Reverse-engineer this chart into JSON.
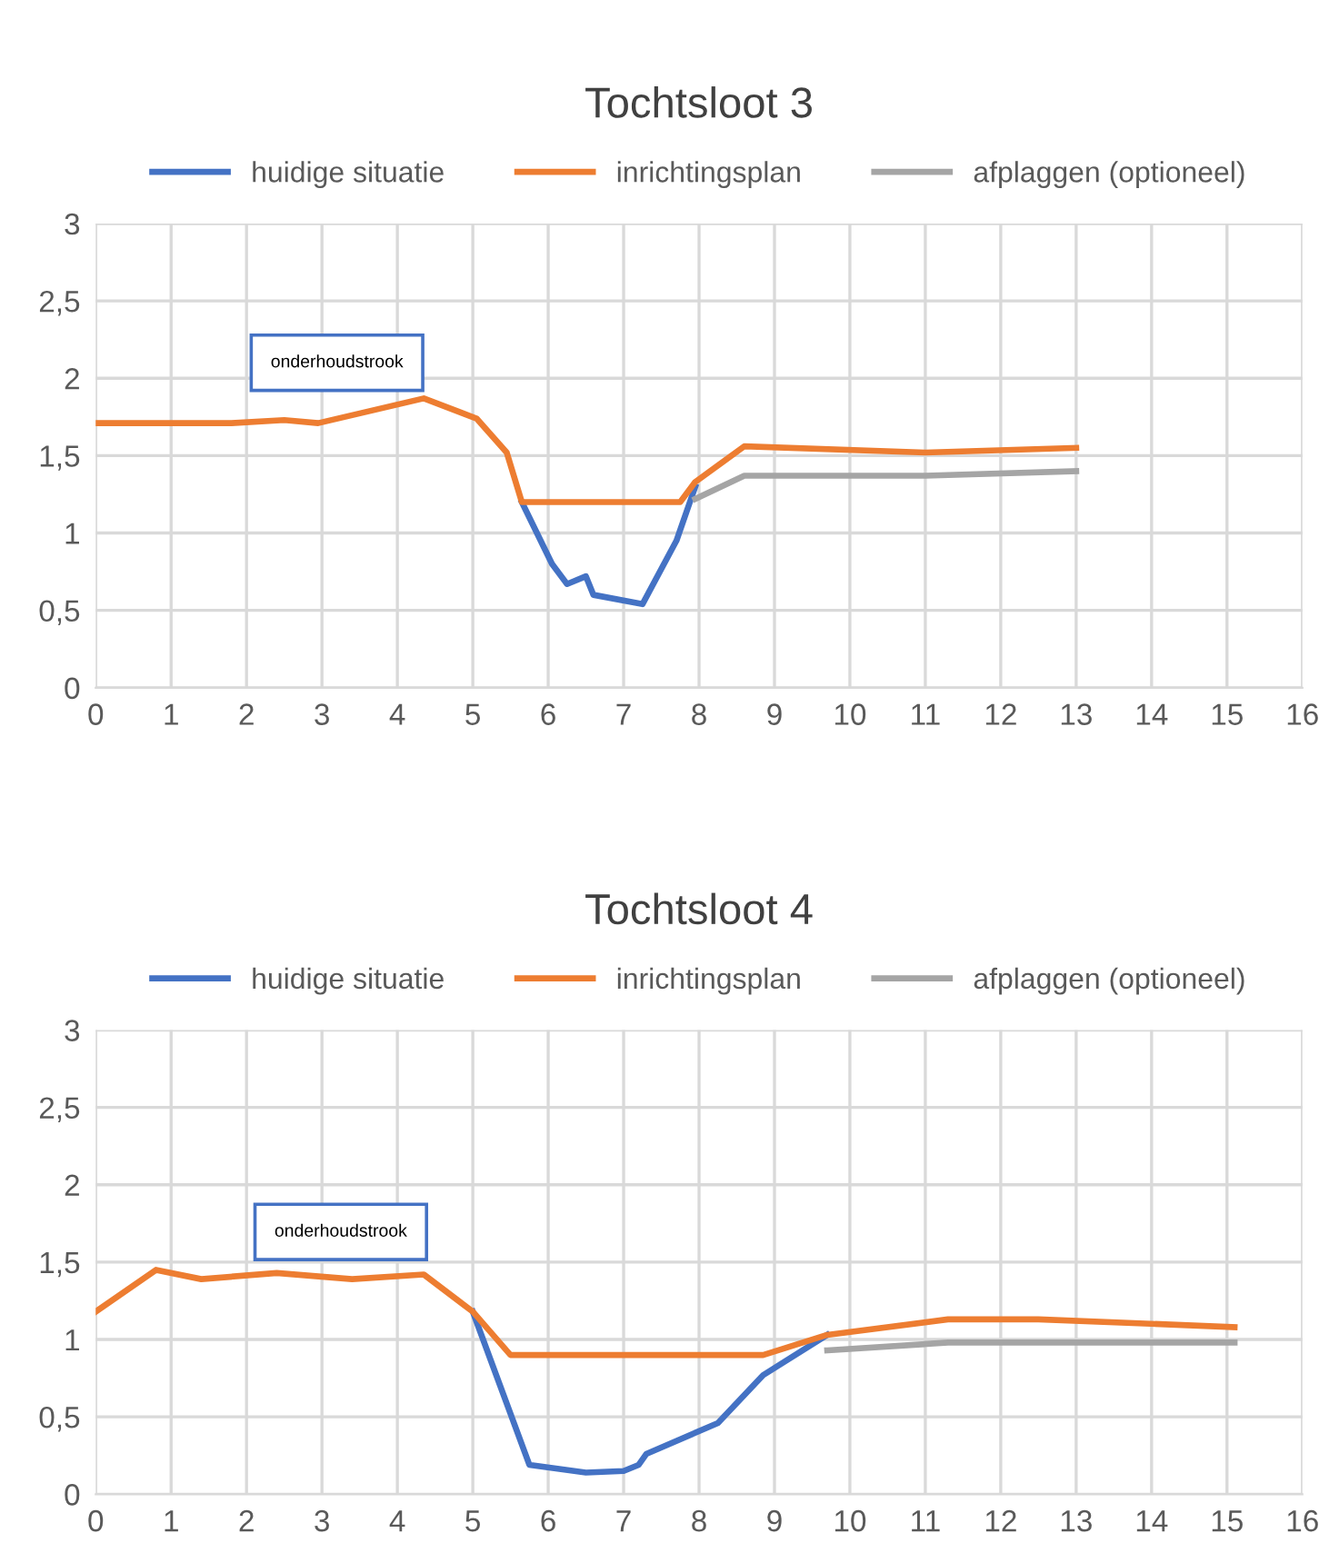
{
  "chart_data": [
    {
      "type": "line",
      "title": "Tochtsloot 3",
      "legend": "top",
      "grid": true,
      "line_style": "solid",
      "marker": "none",
      "xlim": [
        0,
        16
      ],
      "xticks": [
        0,
        1,
        2,
        3,
        4,
        5,
        6,
        7,
        8,
        9,
        10,
        11,
        12,
        13,
        14,
        15,
        16
      ],
      "ylim": [
        0,
        3
      ],
      "yticks": [
        {
          "value": 0,
          "label": "0"
        },
        {
          "value": 0.5,
          "label": "0,5"
        },
        {
          "value": 1,
          "label": "1"
        },
        {
          "value": 1.5,
          "label": "1,5"
        },
        {
          "value": 2,
          "label": "2"
        },
        {
          "value": 2.5,
          "label": "2,5"
        },
        {
          "value": 3,
          "label": "3"
        }
      ],
      "annotations": [
        "onderhoudstrook"
      ],
      "series": [
        {
          "name": "huidige situatie",
          "color": "#4472c4",
          "x": [
            5.65,
            6.05,
            6.25,
            6.5,
            6.6,
            7.25,
            7.7,
            7.95
          ],
          "values": [
            1.2,
            0.8,
            0.67,
            0.72,
            0.6,
            0.54,
            0.95,
            1.3
          ]
        },
        {
          "name": "inrichtingsplan",
          "color": "#ed7d31",
          "x": [
            0,
            1.8,
            2.5,
            2.95,
            4.35,
            5.05,
            5.45,
            5.65,
            7.75,
            7.95,
            8.6,
            11,
            13
          ],
          "values": [
            1.71,
            1.71,
            1.73,
            1.71,
            1.87,
            1.74,
            1.52,
            1.2,
            1.2,
            1.33,
            1.56,
            1.52,
            1.55
          ]
        },
        {
          "name": "afplaggen (optioneel)",
          "color": "#a5a5a5",
          "x": [
            7.95,
            8.6,
            11,
            13
          ],
          "values": [
            1.22,
            1.37,
            1.37,
            1.4
          ]
        }
      ]
    },
    {
      "type": "line",
      "title": "Tochtsloot 4",
      "legend": "top",
      "grid": true,
      "line_style": "solid",
      "marker": "none",
      "xlim": [
        0,
        16
      ],
      "xticks": [
        0,
        1,
        2,
        3,
        4,
        5,
        6,
        7,
        8,
        9,
        10,
        11,
        12,
        13,
        14,
        15,
        16
      ],
      "ylim": [
        0,
        3
      ],
      "yticks": [
        {
          "value": 0,
          "label": "0"
        },
        {
          "value": 0.5,
          "label": "0,5"
        },
        {
          "value": 1,
          "label": "1"
        },
        {
          "value": 1.5,
          "label": "1,5"
        },
        {
          "value": 2,
          "label": "2"
        },
        {
          "value": 2.5,
          "label": "2,5"
        },
        {
          "value": 3,
          "label": "3"
        }
      ],
      "annotations": [
        "onderhoudstrook"
      ],
      "series": [
        {
          "name": "huidige situatie",
          "color": "#4472c4",
          "x": [
            5,
            5.75,
            6.5,
            7,
            7.2,
            7.3,
            8.25,
            8.85,
            9.7
          ],
          "values": [
            1.18,
            0.19,
            0.14,
            0.15,
            0.19,
            0.26,
            0.46,
            0.77,
            1.03
          ]
        },
        {
          "name": "inrichtingsplan",
          "color": "#ed7d31",
          "x": [
            0,
            0.8,
            1.4,
            2.4,
            3.4,
            4.35,
            5,
            5.5,
            8.85,
            9.7,
            11.3,
            12.5,
            15.1
          ],
          "values": [
            1.18,
            1.45,
            1.39,
            1.43,
            1.39,
            1.42,
            1.18,
            0.9,
            0.9,
            1.03,
            1.13,
            1.13,
            1.08
          ]
        },
        {
          "name": "afplaggen (optioneel)",
          "color": "#a5a5a5",
          "x": [
            9.7,
            11.3,
            15.1
          ],
          "values": [
            0.93,
            0.98,
            0.98
          ]
        }
      ]
    }
  ]
}
